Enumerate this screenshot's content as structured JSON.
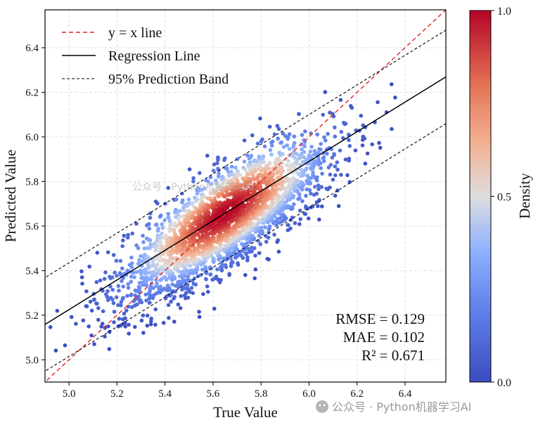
{
  "chart_data": {
    "type": "scatter",
    "title": "",
    "xlabel": "True Value",
    "ylabel": "Predicted Value",
    "xlim": [
      4.9,
      6.57
    ],
    "ylim": [
      4.9,
      6.57
    ],
    "xticks": [
      "5.0",
      "5.2",
      "5.4",
      "5.6",
      "5.8",
      "6.0",
      "6.2",
      "6.4"
    ],
    "yticks": [
      "5.0",
      "5.2",
      "5.4",
      "5.6",
      "5.8",
      "6.0",
      "6.2",
      "6.4"
    ],
    "xtick_values": [
      5.0,
      5.2,
      5.4,
      5.6,
      5.8,
      6.0,
      6.2,
      6.4
    ],
    "ytick_values": [
      5.0,
      5.2,
      5.4,
      5.6,
      5.8,
      6.0,
      6.2,
      6.4
    ],
    "grid": true,
    "point_cloud": {
      "n_points": 2600,
      "x_mean": 5.65,
      "x_std": 0.22,
      "y_mean": 5.62,
      "residual_std": 0.11,
      "color_by": "density",
      "colormap": "coolwarm"
    },
    "identity_line": {
      "label": "y = x line",
      "slope": 1.0,
      "intercept": 0.0,
      "color": "#e32222",
      "style": "dashed"
    },
    "regression_line": {
      "label": "Regression Line",
      "slope": 0.665,
      "intercept": 1.9,
      "color": "#000000",
      "style": "solid"
    },
    "prediction_band": {
      "label": "95% Prediction Band",
      "offset": 0.21,
      "color": "#000000",
      "style": "dashed"
    },
    "legend_position": "upper-left",
    "metrics": [
      "RMSE = 0.129",
      "MAE = 0.102",
      "R² = 0.671"
    ],
    "colorbar": {
      "label": "Density",
      "ticks": [
        "0.0",
        "0.5",
        "1.0"
      ],
      "tick_values": [
        0.0,
        0.5,
        1.0
      ],
      "color_low": "#3b4cc0",
      "color_mid": "#dddddd",
      "color_high": "#b40426"
    }
  },
  "watermark": {
    "text": "公众号 · Python机器学习AI",
    "overlay_text": "公众号 · Python机器学习AI"
  }
}
